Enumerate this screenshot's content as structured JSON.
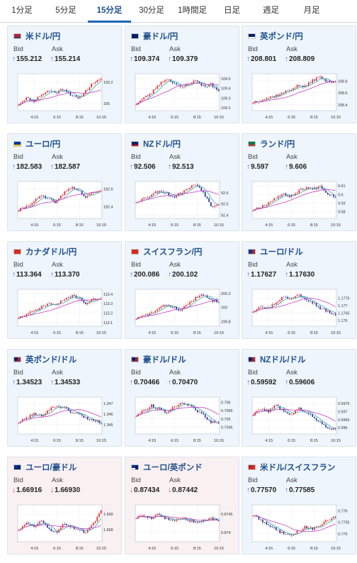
{
  "tabs": [
    {
      "label": "1分足",
      "active": false
    },
    {
      "label": "5分足",
      "active": false
    },
    {
      "label": "15分足",
      "active": true
    },
    {
      "label": "30分足",
      "active": false
    },
    {
      "label": "1時間足",
      "active": false
    },
    {
      "label": "日足",
      "active": false
    },
    {
      "label": "週足",
      "active": false
    },
    {
      "label": "月足",
      "active": false
    }
  ],
  "colors": {
    "accent": "#1f63b3",
    "up_arrow": "#2e74c8",
    "down_arrow": "#d9373b",
    "candle_up": "#e8232a",
    "candle_down": "#1d2f95",
    "ma_short": "#3aa8a0",
    "ma_long": "#c13ec4"
  },
  "labels": {
    "bid": "Bid",
    "ask": "Ask"
  },
  "pairs": [
    {
      "name": "米ドル/円",
      "flag": "us",
      "trend": "up",
      "bid": "155.212",
      "ask": "155.214",
      "chart_data": {
        "type": "candlestick",
        "x_ticks": [
          "4:15",
          "6:15",
          "8:15",
          "10:15"
        ],
        "y_ticks": [
          "155.2",
          "155"
        ],
        "ylim": [
          154.93,
          155.28
        ],
        "seed": 11,
        "series": [
          {
            "values": [
              154.99,
              155.05,
              155.02,
              155.08,
              155.12,
              155.1,
              155.14,
              155.08,
              155.04,
              155.12,
              155.2,
              155.22
            ]
          }
        ]
      }
    },
    {
      "name": "豪ドル/円",
      "flag": "au",
      "trend": "up",
      "bid": "109.374",
      "ask": "109.379",
      "chart_data": {
        "type": "candlestick",
        "x_ticks": [
          "4:15",
          "6:15",
          "8:15",
          "10:15"
        ],
        "y_ticks": [
          "109.5",
          "109.4",
          "109.3",
          "109.2"
        ],
        "ylim": [
          109.17,
          109.55
        ],
        "seed": 23,
        "series": [
          {
            "values": [
              109.24,
              109.3,
              109.35,
              109.44,
              109.5,
              109.46,
              109.4,
              109.45,
              109.48,
              109.42,
              109.44,
              109.37
            ]
          }
        ]
      }
    },
    {
      "name": "英ポンド/円",
      "flag": "gb",
      "trend": "up",
      "bid": "208.801",
      "ask": "208.809",
      "chart_data": {
        "type": "candlestick",
        "x_ticks": [
          "4:15",
          "6:15",
          "8:15",
          "10:15"
        ],
        "y_ticks": [
          "208.8",
          "208.6",
          "208.4"
        ],
        "ylim": [
          208.3,
          208.92
        ],
        "seed": 37,
        "series": [
          {
            "values": [
              208.44,
              208.48,
              208.52,
              208.55,
              208.6,
              208.66,
              208.72,
              208.7,
              208.82,
              208.86,
              208.78,
              208.8
            ]
          }
        ]
      }
    },
    {
      "name": "ユーロ/円",
      "flag": "eu",
      "trend": "up",
      "bid": "182.583",
      "ask": "182.587",
      "chart_data": {
        "type": "candlestick",
        "x_ticks": [
          "4:15",
          "6:15",
          "8:15",
          "10:15"
        ],
        "y_ticks": [
          "182.6",
          "182.4"
        ],
        "ylim": [
          182.27,
          182.68
        ],
        "seed": 41,
        "series": [
          {
            "values": [
              182.36,
              182.4,
              182.46,
              182.52,
              182.48,
              182.45,
              182.55,
              182.62,
              182.58,
              182.5,
              182.56,
              182.58
            ]
          }
        ]
      }
    },
    {
      "name": "NZドル/円",
      "flag": "nz",
      "trend": "up",
      "bid": "92.506",
      "ask": "92.513",
      "chart_data": {
        "type": "candlestick",
        "x_ticks": [
          "4:15",
          "6:15",
          "8:15",
          "10:15"
        ],
        "y_ticks": [
          "92.6",
          "92.5",
          "92.4"
        ],
        "ylim": [
          92.37,
          92.7
        ],
        "seed": 53,
        "series": [
          {
            "values": [
              92.52,
              92.55,
              92.58,
              92.62,
              92.6,
              92.56,
              92.6,
              92.64,
              92.68,
              92.6,
              92.48,
              92.5
            ]
          }
        ]
      }
    },
    {
      "name": "ランド/円",
      "flag": "za",
      "trend": "up",
      "bid": "9.597",
      "ask": "9.606",
      "chart_data": {
        "type": "candlestick",
        "x_ticks": [
          "4:15",
          "6:15",
          "8:15",
          "10:15"
        ],
        "y_ticks": [
          "9.61",
          "9.6",
          "9.59",
          "9.58"
        ],
        "ylim": [
          9.572,
          9.615
        ],
        "seed": 67,
        "series": [
          {
            "values": [
              9.582,
              9.586,
              9.59,
              9.596,
              9.6,
              9.598,
              9.604,
              9.608,
              9.606,
              9.61,
              9.6,
              9.598
            ]
          }
        ]
      }
    },
    {
      "name": "カナダドル/円",
      "flag": "ca",
      "trend": "up",
      "bid": "113.364",
      "ask": "113.370",
      "chart_data": {
        "type": "candlestick",
        "x_ticks": [
          "4:15",
          "6:15",
          "8:15",
          "10:15"
        ],
        "y_ticks": [
          "113.4",
          "113.3",
          "113.2",
          "113.1"
        ],
        "ylim": [
          113.06,
          113.45
        ],
        "seed": 71,
        "series": [
          {
            "values": [
              113.15,
              113.18,
              113.22,
              113.26,
              113.3,
              113.28,
              113.34,
              113.38,
              113.36,
              113.3,
              113.34,
              113.36
            ]
          }
        ]
      }
    },
    {
      "name": "スイスフラン/円",
      "flag": "ch",
      "trend": "up",
      "bid": "200.086",
      "ask": "200.102",
      "chart_data": {
        "type": "candlestick",
        "x_ticks": [
          "4:15",
          "6:15",
          "8:15",
          "10:15"
        ],
        "y_ticks": [
          "200.2",
          "200",
          "199.8"
        ],
        "ylim": [
          199.73,
          200.26
        ],
        "seed": 83,
        "series": [
          {
            "values": [
              199.84,
              199.88,
              199.92,
              199.98,
              200.04,
              200.0,
              199.96,
              200.06,
              200.14,
              200.18,
              200.1,
              200.09
            ]
          }
        ]
      }
    },
    {
      "name": "ユーロ/ドル",
      "flag": "eu-us",
      "trend": "up",
      "bid": "1.17627",
      "ask": "1.17630",
      "chart_data": {
        "type": "candlestick",
        "x_ticks": [
          "4:15",
          "6:15",
          "8:15",
          "10:15"
        ],
        "y_ticks": [
          "1.1775",
          "1.177",
          "1.1765",
          "1.176"
        ],
        "ylim": [
          1.1756,
          1.1781
        ],
        "seed": 97,
        "series": [
          {
            "values": [
              1.1766,
              1.177,
              1.1768,
              1.1772,
              1.1776,
              1.1774,
              1.1778,
              1.1775,
              1.1772,
              1.1768,
              1.1766,
              1.1763
            ]
          }
        ]
      }
    },
    {
      "name": "英ポンド/ドル",
      "flag": "gb-us",
      "trend": "up",
      "bid": "1.34523",
      "ask": "1.34533",
      "chart_data": {
        "type": "candlestick",
        "x_ticks": [
          "4:15",
          "6:15",
          "8:15",
          "10:15"
        ],
        "y_ticks": [
          "1.347",
          "1.346",
          "1.345"
        ],
        "ylim": [
          1.3441,
          1.3476
        ],
        "seed": 101,
        "series": [
          {
            "values": [
              1.3452,
              1.3456,
              1.346,
              1.3458,
              1.3464,
              1.3468,
              1.3466,
              1.3462,
              1.346,
              1.3456,
              1.3454,
              1.3452
            ]
          }
        ]
      }
    },
    {
      "name": "豪ドル/ドル",
      "flag": "au-us",
      "trend": "up",
      "bid": "0.70466",
      "ask": "0.70470",
      "chart_data": {
        "type": "candlestick",
        "x_ticks": [
          "4:15",
          "6:15",
          "8:15",
          "10:15"
        ],
        "y_ticks": [
          "0.706",
          "0.7055",
          "0.705",
          "0.7045"
        ],
        "ylim": [
          0.7041,
          0.7063
        ],
        "seed": 113,
        "series": [
          {
            "values": [
              0.7052,
              0.7055,
              0.7058,
              0.7056,
              0.7054,
              0.7057,
              0.706,
              0.7058,
              0.7055,
              0.7052,
              0.7048,
              0.7047
            ]
          }
        ]
      }
    },
    {
      "name": "NZドル/ドル",
      "flag": "nz-us",
      "trend": "up",
      "bid": "0.59592",
      "ask": "0.59606",
      "chart_data": {
        "type": "candlestick",
        "x_ticks": [
          "4:15",
          "6:15",
          "8:15",
          "10:15"
        ],
        "y_ticks": [
          "0.5975",
          "0.597",
          "0.5965",
          "0.596"
        ],
        "ylim": [
          0.5956,
          0.5979
        ],
        "seed": 127,
        "series": [
          {
            "values": [
              0.5968,
              0.5972,
              0.597,
              0.5974,
              0.5971,
              0.5968,
              0.5972,
              0.597,
              0.5966,
              0.5963,
              0.596,
              0.5959
            ]
          }
        ]
      }
    },
    {
      "name": "ユーロ/豪ドル",
      "flag": "eu-au",
      "trend": "down",
      "bid": "1.66916",
      "ask": "1.66930",
      "chart_data": {
        "type": "candlestick",
        "x_ticks": [
          "4:15",
          "6:15",
          "8:15",
          "10:15"
        ],
        "y_ticks": [
          "1.669",
          "1.668"
        ],
        "ylim": [
          1.6672,
          1.6696
        ],
        "seed": 131,
        "series": [
          {
            "values": [
              1.668,
              1.6684,
              1.6682,
              1.6686,
              1.668,
              1.6678,
              1.6684,
              1.6682,
              1.668,
              1.6678,
              1.6684,
              1.6692
            ]
          }
        ]
      }
    },
    {
      "name": "ユーロ/英ポンド",
      "flag": "eu-gb",
      "trend": "down",
      "bid": "0.87434",
      "ask": "0.87442",
      "chart_data": {
        "type": "candlestick",
        "x_ticks": [
          "4:15",
          "6:15",
          "8:15",
          "10:15"
        ],
        "y_ticks": [
          "0.8745",
          "0.874"
        ],
        "ylim": [
          0.87375,
          0.87475
        ],
        "seed": 139,
        "series": [
          {
            "values": [
              0.8744,
              0.87445,
              0.87438,
              0.8745,
              0.87436,
              0.8743,
              0.8744,
              0.87434,
              0.87428,
              0.87432,
              0.87438,
              0.87434
            ]
          }
        ]
      }
    },
    {
      "name": "米ドル/スイスフラン",
      "flag": "us-ch",
      "trend": "up",
      "bid": "0.77570",
      "ask": "0.77585",
      "chart_data": {
        "type": "candlestick",
        "x_ticks": [
          "4:15",
          "6:15",
          "8:15",
          "10:15"
        ],
        "y_ticks": [
          "0.776",
          "0.7755",
          "0.775"
        ],
        "ylim": [
          0.77465,
          0.77625
        ],
        "seed": 149,
        "series": [
          {
            "values": [
              0.7758,
              0.7756,
              0.7754,
              0.7752,
              0.775,
              0.7749,
              0.7751,
              0.7753,
              0.7752,
              0.7754,
              0.7756,
              0.7757
            ]
          }
        ]
      }
    }
  ]
}
